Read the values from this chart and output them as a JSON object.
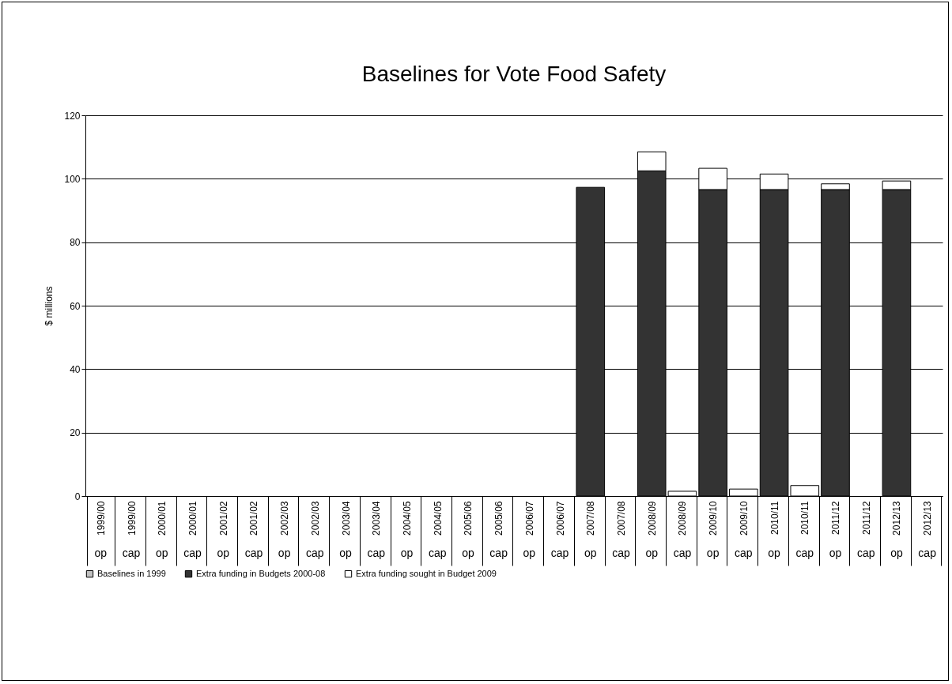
{
  "chart_data": {
    "type": "bar",
    "title": "Baselines for Vote Food Safety",
    "ylabel": "$ millions",
    "stacked": true,
    "grid": "y",
    "legend": "bottom",
    "categories": [
      "1999/00 op",
      "1999/00 cap",
      "2000/01 op",
      "2000/01 cap",
      "2001/02 op",
      "2001/02 cap",
      "2002/03 op",
      "2002/03 cap",
      "2003/04 op",
      "2003/04 cap",
      "2004/05 op",
      "2004/05 cap",
      "2005/06 op",
      "2005/06 cap",
      "2006/07 op",
      "2006/07 cap",
      "2007/08 op",
      "2007/08 cap",
      "2008/09 op",
      "2008/09 cap",
      "2009/10 op",
      "2009/10 cap",
      "2010/11 op",
      "2010/11 cap",
      "2011/12 op",
      "2011/12 cap",
      "2012/13 op",
      "2012/13 cap"
    ],
    "ylim": [
      0,
      120
    ],
    "yticks": [
      0,
      20,
      40,
      60,
      80,
      100,
      120
    ],
    "series": [
      {
        "name": "Baselines in 1999",
        "color": "#c0c0c0",
        "values": [
          0,
          0,
          0,
          0,
          0,
          0,
          0,
          0,
          0,
          0,
          0,
          0,
          0,
          0,
          0,
          0,
          0,
          0,
          0,
          0,
          0,
          0,
          0,
          0,
          0,
          0,
          0,
          0
        ]
      },
      {
        "name": "Extra funding in Budgets 2000-08",
        "color": "#333333",
        "values": [
          0,
          0,
          0,
          0,
          0,
          0,
          0,
          0,
          0,
          0,
          0,
          0,
          0,
          0,
          0,
          0,
          97.3,
          0,
          102.5,
          0,
          96.6,
          0,
          96.6,
          0,
          96.6,
          0,
          96.6,
          0
        ]
      },
      {
        "name": "Extra funding sought in Budget 2009",
        "color": "#ffffff",
        "values": [
          0,
          0,
          0,
          0,
          0,
          0,
          0,
          0,
          0,
          0,
          0,
          0,
          0,
          0,
          0,
          0,
          0,
          0,
          6.0,
          1.5,
          6.7,
          2.2,
          4.9,
          3.3,
          1.8,
          0,
          2.7,
          0
        ]
      }
    ]
  }
}
